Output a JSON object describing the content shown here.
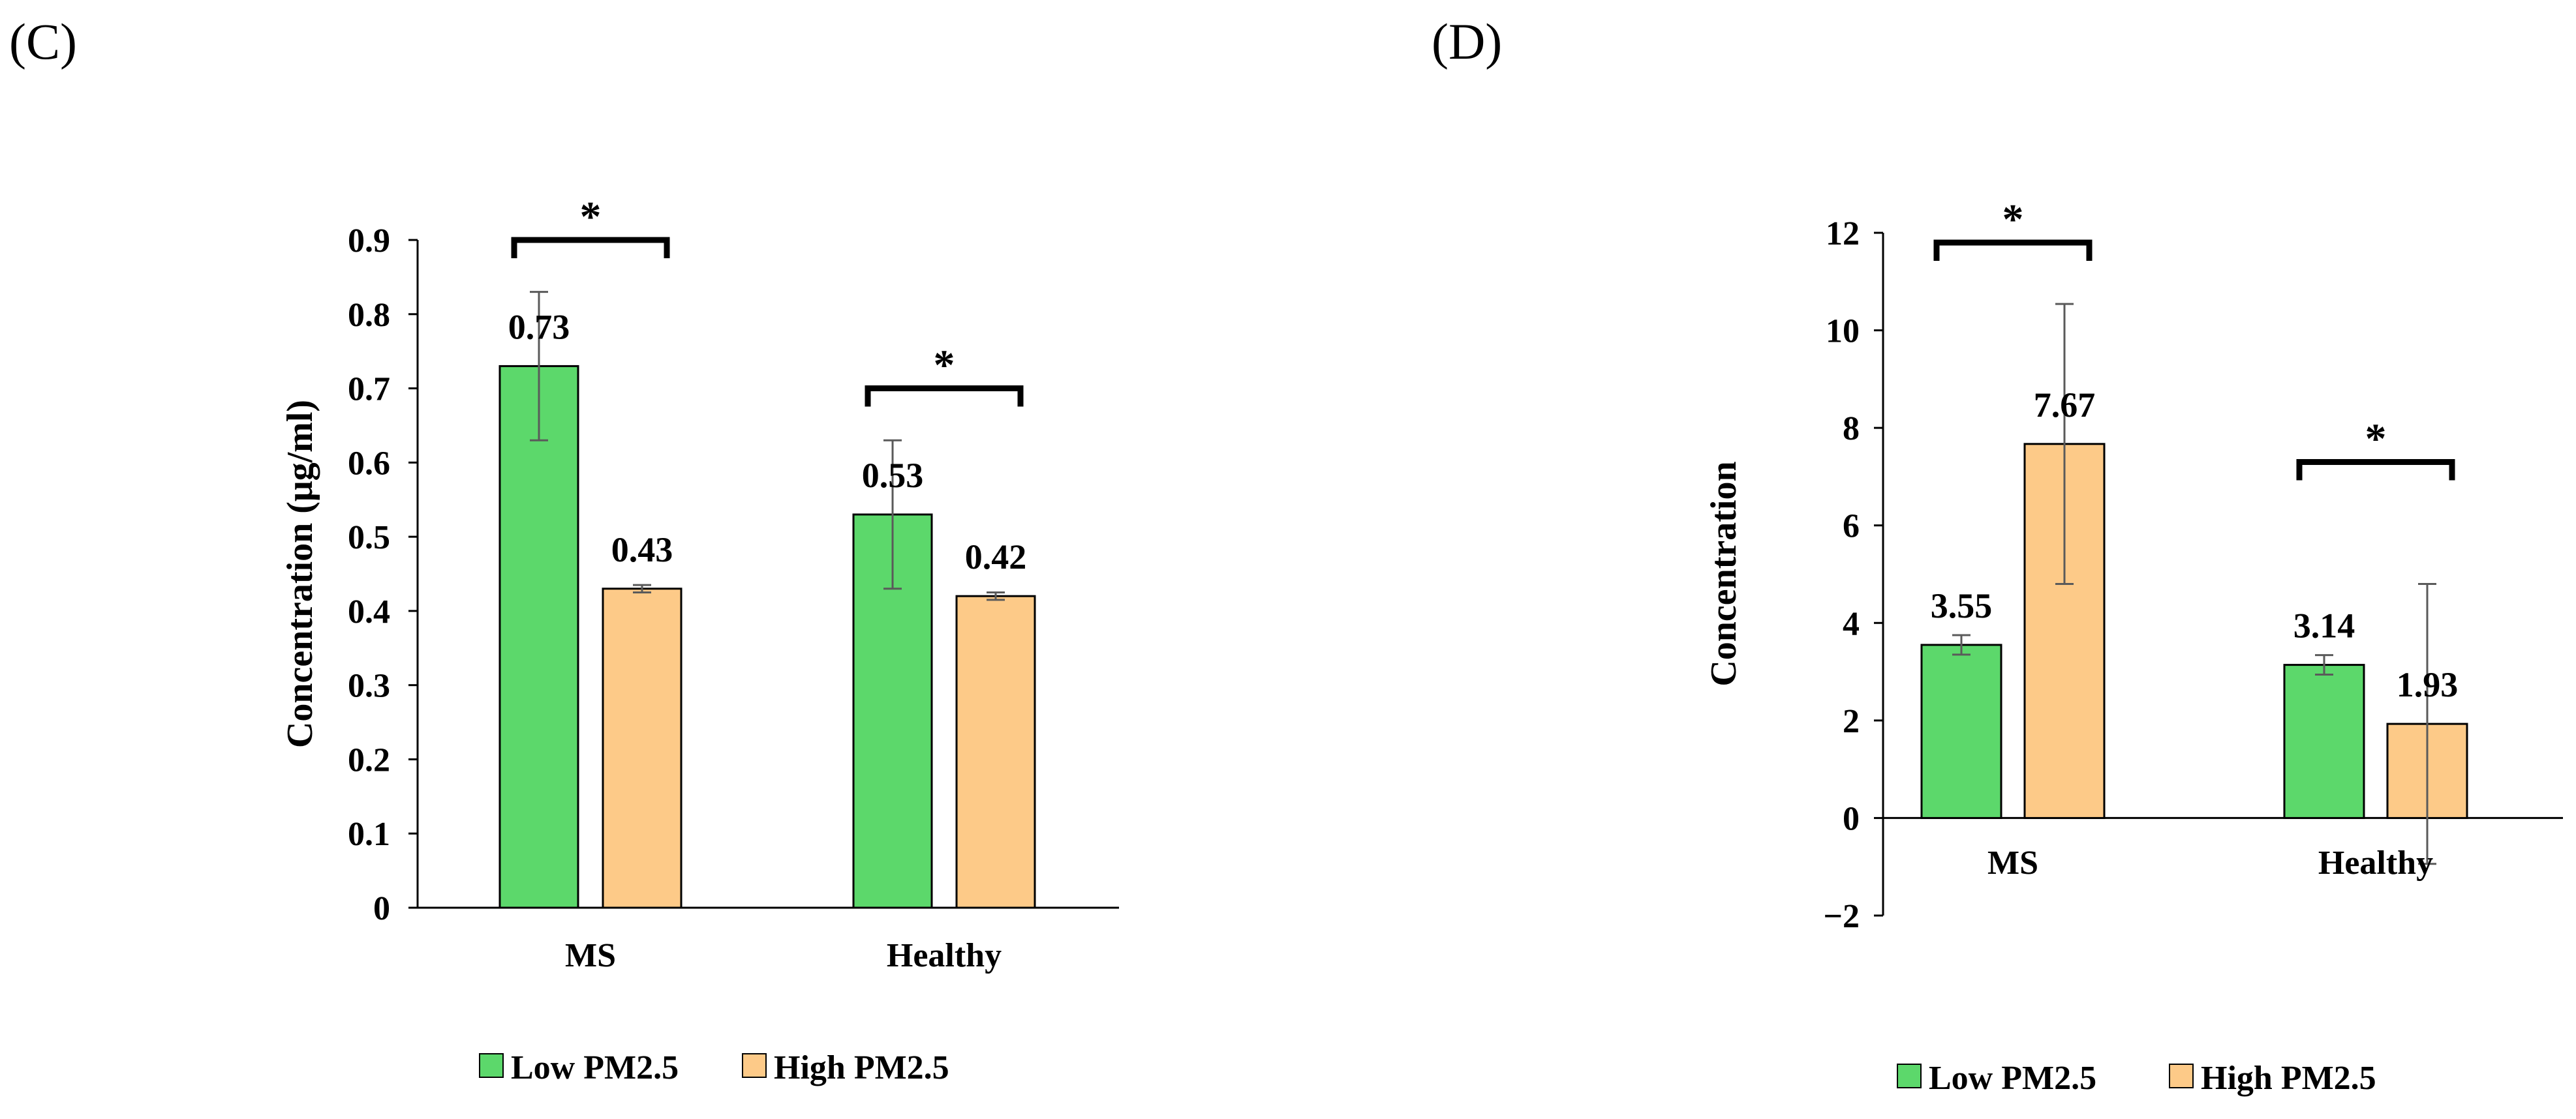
{
  "chart_data": [
    {
      "panel_label": "(C)",
      "type": "bar",
      "title": "",
      "xlabel": "",
      "ylabel": "Concentration  (μg/ml)",
      "ylim": [
        0,
        0.9
      ],
      "yticks": [
        0,
        0.1,
        0.2,
        0.3,
        0.4,
        0.5,
        0.6,
        0.7,
        0.8,
        0.9
      ],
      "ytick_labels": [
        "0",
        "0.1",
        "0.2",
        "0.3",
        "0.4",
        "0.5",
        "0.6",
        "0.7",
        "0.8",
        "0.9"
      ],
      "grid": false,
      "legend_position": "bottom",
      "categories": [
        "MS",
        "Healthy"
      ],
      "series": [
        {
          "name": "Low PM2.5",
          "color": "#5cd86b",
          "values": [
            0.73,
            0.53
          ],
          "labels": [
            "0.73",
            "0.53"
          ],
          "errors": [
            0.1,
            0.1
          ]
        },
        {
          "name": "High PM2.5",
          "color": "#fdca88",
          "values": [
            0.43,
            0.42
          ],
          "labels": [
            "0.43",
            "0.42"
          ],
          "errors": [
            0.005,
            0.005
          ]
        }
      ],
      "significance": [
        {
          "category": "MS",
          "level": 0.9,
          "marker": "*"
        },
        {
          "category": "Healthy",
          "level": 0.7,
          "marker": "*"
        }
      ]
    },
    {
      "panel_label": "(D)",
      "type": "bar",
      "title": "",
      "xlabel": "",
      "ylabel": "Concentration",
      "ylim": [
        -2,
        12
      ],
      "yticks": [
        -2,
        0,
        2,
        4,
        6,
        8,
        10,
        12
      ],
      "ytick_labels": [
        "−2",
        "0",
        "2",
        "4",
        "6",
        "8",
        "10",
        "12"
      ],
      "grid": false,
      "legend_position": "bottom",
      "categories": [
        "MS",
        "Healthy"
      ],
      "series": [
        {
          "name": "Low PM2.5",
          "color": "#5cd86b",
          "values": [
            3.55,
            3.14
          ],
          "labels": [
            "3.55",
            "3.14"
          ],
          "errors": [
            0.2,
            0.2
          ]
        },
        {
          "name": "High PM2.5",
          "color": "#fdca88",
          "values": [
            7.67,
            1.93
          ],
          "labels": [
            "7.67",
            "1.93"
          ],
          "errors": [
            2.87,
            2.87
          ]
        }
      ],
      "significance": [
        {
          "category": "MS",
          "level": 11.8,
          "marker": "*"
        },
        {
          "category": "Healthy",
          "level": 7.3,
          "marker": "*"
        }
      ]
    }
  ]
}
